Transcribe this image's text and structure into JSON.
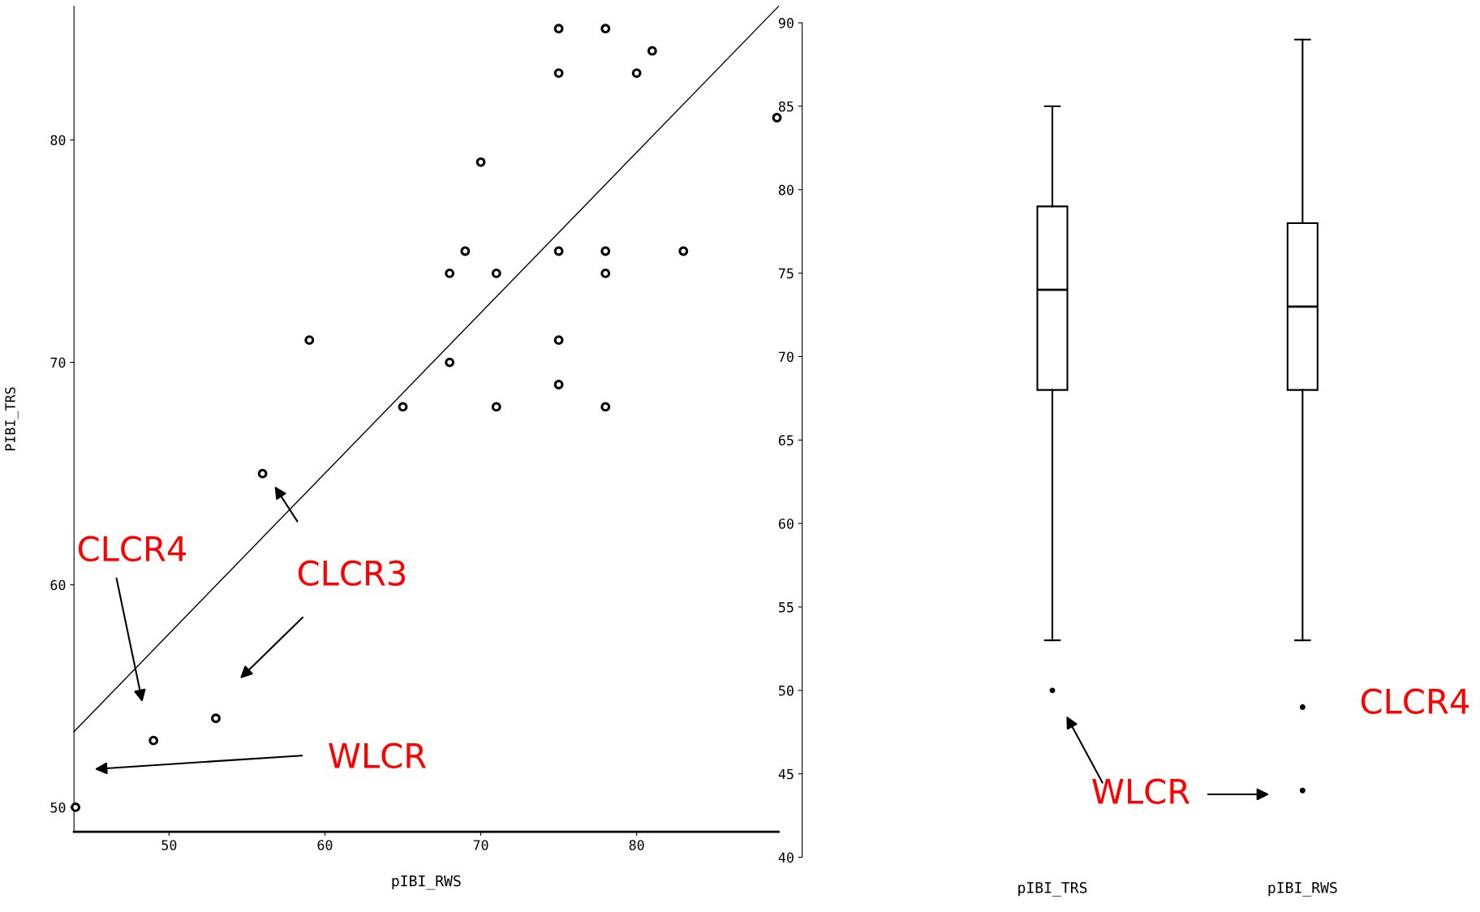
{
  "chart_data": [
    {
      "type": "scatter",
      "xlabel": "pIBI_RWS",
      "ylabel": "PIBI_TRS",
      "xlim": [
        43.9,
        89.1
      ],
      "ylim": [
        48.9,
        86
      ],
      "xticks": [
        50,
        60,
        70,
        80
      ],
      "yticks": [
        50,
        60,
        70,
        80
      ],
      "grid": false,
      "marker": "circle",
      "series": [
        {
          "color": "#000000",
          "x": [
            75,
            78,
            81,
            75,
            80,
            89,
            70,
            69,
            75,
            78,
            83,
            68,
            71,
            78,
            59,
            75,
            68,
            75,
            65,
            71,
            78,
            56,
            49,
            53,
            44
          ],
          "values": [
            85,
            85,
            84,
            83,
            83,
            81,
            79,
            75,
            75,
            75,
            75,
            74,
            74,
            74,
            71,
            71,
            70,
            69,
            68,
            68,
            68,
            65,
            53,
            54,
            50
          ]
        },
        {
          "type": "line",
          "marker": "none",
          "color": "#000000",
          "x": [
            43.9,
            89.1
          ],
          "values": [
            53.4,
            86
          ]
        }
      ],
      "annotations": [
        "CLCR4",
        "CLCR3",
        "WLCR"
      ]
    },
    {
      "type": "box",
      "categories": [
        "pIBI_TRS",
        "pIBI_RWS"
      ],
      "ylim": [
        40,
        90
      ],
      "yticks": [
        40,
        45,
        50,
        55,
        60,
        65,
        70,
        75,
        80,
        85,
        90
      ],
      "grid": false,
      "boxes": [
        {
          "low": 53,
          "q1": 68,
          "median": 74,
          "q3": 79,
          "high": 85,
          "outliers": [
            50
          ]
        },
        {
          "low": 53,
          "q1": 68,
          "median": 73,
          "q3": 78,
          "high": 89,
          "outliers": [
            49,
            44
          ]
        }
      ],
      "annotations": [
        "WLCR",
        "CLCR4"
      ]
    }
  ]
}
